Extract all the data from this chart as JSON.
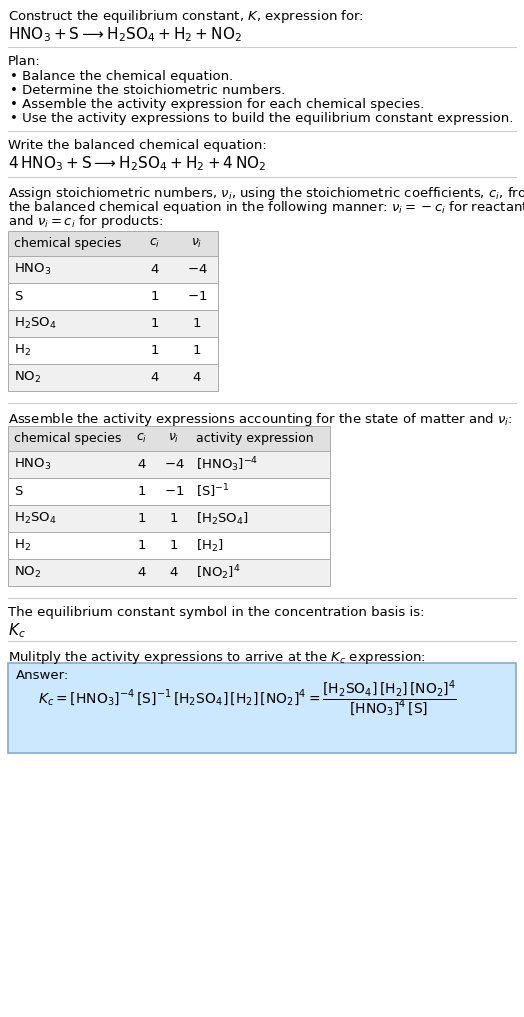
{
  "bg_color": "#ffffff",
  "table1_headers": [
    "chemical species",
    "$c_i$",
    "$\\nu_i$"
  ],
  "table1_rows": [
    [
      "$\\mathrm{HNO_3}$",
      "4",
      "$-4$"
    ],
    [
      "S",
      "1",
      "$-1$"
    ],
    [
      "$\\mathrm{H_2SO_4}$",
      "1",
      "1"
    ],
    [
      "$\\mathrm{H_2}$",
      "1",
      "1"
    ],
    [
      "$\\mathrm{NO_2}$",
      "4",
      "4"
    ]
  ],
  "table2_headers": [
    "chemical species",
    "$c_i$",
    "$\\nu_i$",
    "activity expression"
  ],
  "table2_rows": [
    [
      "$\\mathrm{HNO_3}$",
      "4",
      "$-4$",
      "$[\\mathrm{HNO_3}]^{-4}$"
    ],
    [
      "S",
      "1",
      "$-1$",
      "$[\\mathrm{S}]^{-1}$"
    ],
    [
      "$\\mathrm{H_2SO_4}$",
      "1",
      "1",
      "$[\\mathrm{H_2SO_4}]$"
    ],
    [
      "$\\mathrm{H_2}$",
      "1",
      "1",
      "$[\\mathrm{H_2}]$"
    ],
    [
      "$\\mathrm{NO_2}$",
      "4",
      "4",
      "$[\\mathrm{NO_2}]^4$"
    ]
  ],
  "answer_box_color": "#cce8ff",
  "answer_box_border": "#88aacc",
  "table_header_bg": "#e0e0e0",
  "table_row0_bg": "#f0f0f0",
  "table_row1_bg": "#ffffff",
  "table_border": "#aaaaaa"
}
